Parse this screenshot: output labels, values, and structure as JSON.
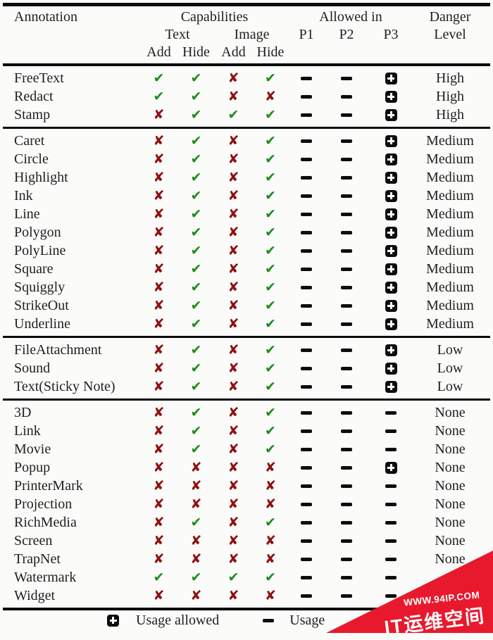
{
  "colors": {
    "check": "#1f8c1f",
    "cross": "#8e1212",
    "mark": "#0d0d0d",
    "wm": "#e8192c",
    "text": "#1f1f1f"
  },
  "header": {
    "annotation": "Annotation",
    "capabilities": "Capabilities",
    "allowed_in": "Allowed in",
    "danger": "Danger",
    "text": "Text",
    "image": "Image",
    "p1": "P1",
    "p2": "P2",
    "p3": "P3",
    "level": "Level",
    "sub": [
      "Add",
      "Hide",
      "Add",
      "Hide"
    ]
  },
  "table": {
    "groups": [
      {
        "rows": [
          {
            "name": "FreeText",
            "caps": [
              "yes",
              "yes",
              "no",
              "yes"
            ],
            "allowed": [
              "minus",
              "minus",
              "plus"
            ],
            "danger": "High"
          },
          {
            "name": "Redact",
            "caps": [
              "yes",
              "yes",
              "no",
              "no"
            ],
            "allowed": [
              "minus",
              "minus",
              "plus"
            ],
            "danger": "High"
          },
          {
            "name": "Stamp",
            "caps": [
              "no",
              "yes",
              "yes",
              "yes"
            ],
            "allowed": [
              "minus",
              "minus",
              "plus"
            ],
            "danger": "High"
          }
        ]
      },
      {
        "rows": [
          {
            "name": "Caret",
            "caps": [
              "no",
              "yes",
              "no",
              "yes"
            ],
            "allowed": [
              "minus",
              "minus",
              "plus"
            ],
            "danger": "Medium"
          },
          {
            "name": "Circle",
            "caps": [
              "no",
              "yes",
              "no",
              "yes"
            ],
            "allowed": [
              "minus",
              "minus",
              "plus"
            ],
            "danger": "Medium"
          },
          {
            "name": "Highlight",
            "caps": [
              "no",
              "yes",
              "no",
              "yes"
            ],
            "allowed": [
              "minus",
              "minus",
              "plus"
            ],
            "danger": "Medium"
          },
          {
            "name": "Ink",
            "caps": [
              "no",
              "yes",
              "no",
              "yes"
            ],
            "allowed": [
              "minus",
              "minus",
              "plus"
            ],
            "danger": "Medium"
          },
          {
            "name": "Line",
            "caps": [
              "no",
              "yes",
              "no",
              "yes"
            ],
            "allowed": [
              "minus",
              "minus",
              "plus"
            ],
            "danger": "Medium"
          },
          {
            "name": "Polygon",
            "caps": [
              "no",
              "yes",
              "no",
              "yes"
            ],
            "allowed": [
              "minus",
              "minus",
              "plus"
            ],
            "danger": "Medium"
          },
          {
            "name": "PolyLine",
            "caps": [
              "no",
              "yes",
              "no",
              "yes"
            ],
            "allowed": [
              "minus",
              "minus",
              "plus"
            ],
            "danger": "Medium"
          },
          {
            "name": "Square",
            "caps": [
              "no",
              "yes",
              "no",
              "yes"
            ],
            "allowed": [
              "minus",
              "minus",
              "plus"
            ],
            "danger": "Medium"
          },
          {
            "name": "Squiggly",
            "caps": [
              "no",
              "yes",
              "no",
              "yes"
            ],
            "allowed": [
              "minus",
              "minus",
              "plus"
            ],
            "danger": "Medium"
          },
          {
            "name": "StrikeOut",
            "caps": [
              "no",
              "yes",
              "no",
              "yes"
            ],
            "allowed": [
              "minus",
              "minus",
              "plus"
            ],
            "danger": "Medium"
          },
          {
            "name": "Underline",
            "caps": [
              "no",
              "yes",
              "no",
              "yes"
            ],
            "allowed": [
              "minus",
              "minus",
              "plus"
            ],
            "danger": "Medium"
          }
        ]
      },
      {
        "rows": [
          {
            "name": "FileAttachment",
            "caps": [
              "no",
              "yes",
              "no",
              "yes"
            ],
            "allowed": [
              "minus",
              "minus",
              "plus"
            ],
            "danger": "Low"
          },
          {
            "name": "Sound",
            "caps": [
              "no",
              "yes",
              "no",
              "yes"
            ],
            "allowed": [
              "minus",
              "minus",
              "plus"
            ],
            "danger": "Low"
          },
          {
            "name": "Text(Sticky Note)",
            "caps": [
              "no",
              "yes",
              "no",
              "yes"
            ],
            "allowed": [
              "minus",
              "minus",
              "plus"
            ],
            "danger": "Low"
          }
        ]
      },
      {
        "rows": [
          {
            "name": "3D",
            "caps": [
              "no",
              "yes",
              "no",
              "yes"
            ],
            "allowed": [
              "minus",
              "minus",
              "minus"
            ],
            "danger": "None"
          },
          {
            "name": "Link",
            "caps": [
              "no",
              "yes",
              "no",
              "yes"
            ],
            "allowed": [
              "minus",
              "minus",
              "minus"
            ],
            "danger": "None"
          },
          {
            "name": "Movie",
            "caps": [
              "no",
              "yes",
              "no",
              "yes"
            ],
            "allowed": [
              "minus",
              "minus",
              "minus"
            ],
            "danger": "None"
          },
          {
            "name": "Popup",
            "caps": [
              "no",
              "no",
              "no",
              "no"
            ],
            "allowed": [
              "minus",
              "minus",
              "plus"
            ],
            "danger": "None"
          },
          {
            "name": "PrinterMark",
            "caps": [
              "no",
              "no",
              "no",
              "no"
            ],
            "allowed": [
              "minus",
              "minus",
              "minus"
            ],
            "danger": "None"
          },
          {
            "name": "Projection",
            "caps": [
              "no",
              "no",
              "no",
              "no"
            ],
            "allowed": [
              "minus",
              "minus",
              "minus"
            ],
            "danger": "None"
          },
          {
            "name": "RichMedia",
            "caps": [
              "no",
              "yes",
              "no",
              "yes"
            ],
            "allowed": [
              "minus",
              "minus",
              "minus"
            ],
            "danger": "None"
          },
          {
            "name": "Screen",
            "caps": [
              "no",
              "no",
              "no",
              "no"
            ],
            "allowed": [
              "minus",
              "minus",
              "minus"
            ],
            "danger": "None"
          },
          {
            "name": "TrapNet",
            "caps": [
              "no",
              "no",
              "no",
              "no"
            ],
            "allowed": [
              "minus",
              "minus",
              "minus"
            ],
            "danger": "None"
          },
          {
            "name": "Watermark",
            "caps": [
              "yes",
              "yes",
              "yes",
              "yes"
            ],
            "allowed": [
              "minus",
              "minus",
              "minus"
            ],
            "danger": ""
          },
          {
            "name": "Widget",
            "caps": [
              "no",
              "no",
              "no",
              "no"
            ],
            "allowed": [
              "minus",
              "minus",
              "minus"
            ],
            "danger": ""
          }
        ]
      }
    ]
  },
  "legend": {
    "plus_label": "Usage allowed",
    "minus_label": "Usage"
  },
  "watermark": {
    "url": "WWW.94IP.COM",
    "title": "IT运维空间"
  }
}
